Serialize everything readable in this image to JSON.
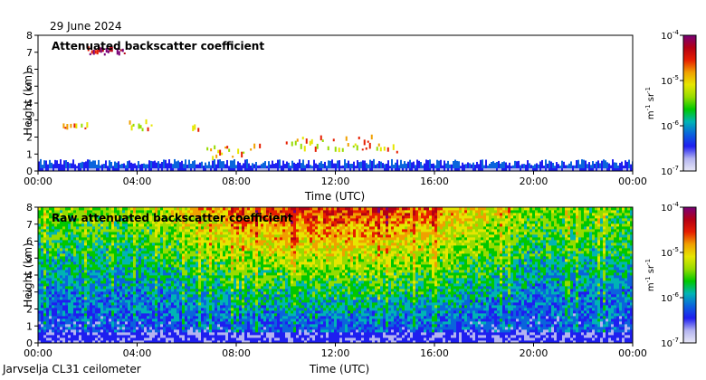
{
  "header": {
    "date": "29 June 2024"
  },
  "footer": {
    "station": "Jarvselja CL31 ceilometer"
  },
  "colors": {
    "colormap": [
      "#e8e8f6",
      "#b4b4f0",
      "#1e1ef0",
      "#0a64dc",
      "#00b4b4",
      "#00c800",
      "#96dc00",
      "#e6e600",
      "#f0a000",
      "#e61e00",
      "#b40014",
      "#780078"
    ]
  },
  "chart_data": [
    {
      "type": "heatmap",
      "title": "Attenuated backscatter coefficient",
      "xlabel": "Time (UTC)",
      "ylabel": "Height (km)",
      "x_ticks": [
        "00:00",
        "04:00",
        "08:00",
        "12:00",
        "16:00",
        "20:00",
        "00:00"
      ],
      "xlim_hours": [
        0,
        24
      ],
      "ylim": [
        0,
        8
      ],
      "y_ticks": [
        "0",
        "1",
        "2",
        "3",
        "4",
        "5",
        "6",
        "7",
        "8"
      ],
      "colorbar": {
        "scale": "log",
        "min_label": "10",
        "min_exp": "-7",
        "ticks": [
          {
            "base": "10",
            "exp": "-7"
          },
          {
            "base": "10",
            "exp": "-6"
          },
          {
            "base": "10",
            "exp": "-5"
          },
          {
            "base": "10",
            "exp": "-4"
          }
        ],
        "unit_a": "m",
        "unit_a_exp": "-1",
        "unit_b": "sr",
        "unit_b_exp": "-1"
      },
      "layers": [
        {
          "name": "boundary layer",
          "from_h": 0,
          "to_h": 24,
          "top_km": 0.5
        },
        {
          "name": "cloud band",
          "from_h": 1.0,
          "to_h": 2.0,
          "bottom_km": 2.4,
          "top_km": 2.7
        },
        {
          "name": "cloud band",
          "from_h": 3.6,
          "to_h": 4.6,
          "bottom_km": 2.3,
          "top_km": 3.1
        },
        {
          "name": "cloud band",
          "from_h": 6.0,
          "to_h": 6.5,
          "bottom_km": 2.2,
          "top_km": 2.6
        },
        {
          "name": "cloud band",
          "from_h": 6.8,
          "to_h": 9.2,
          "bottom_km": 0.6,
          "top_km": 1.9
        },
        {
          "name": "cloud band",
          "from_h": 10.0,
          "to_h": 13.8,
          "bottom_km": 1.1,
          "top_km": 2.4
        },
        {
          "name": "cloud band",
          "from_h": 13.8,
          "to_h": 14.6,
          "bottom_km": 1.0,
          "top_km": 1.8
        },
        {
          "name": "cirrus",
          "from_h": 2.0,
          "to_h": 3.6,
          "bottom_km": 6.8,
          "top_km": 7.3
        }
      ]
    },
    {
      "type": "heatmap",
      "title": "Raw attenuated backscatter coefficient",
      "xlabel": "Time (UTC)",
      "ylabel": "Height (km)",
      "x_ticks": [
        "00:00",
        "04:00",
        "08:00",
        "12:00",
        "16:00",
        "20:00",
        "00:00"
      ],
      "xlim_hours": [
        0,
        24
      ],
      "ylim": [
        0,
        8
      ],
      "y_ticks": [
        "0",
        "1",
        "2",
        "3",
        "4",
        "5",
        "6",
        "7",
        "8"
      ],
      "colorbar": {
        "scale": "log",
        "ticks": [
          {
            "base": "10",
            "exp": "-7"
          },
          {
            "base": "10",
            "exp": "-6"
          },
          {
            "base": "10",
            "exp": "-5"
          },
          {
            "base": "10",
            "exp": "-4"
          }
        ],
        "unit_a": "m",
        "unit_a_exp": "-1",
        "unit_b": "sr",
        "unit_b_exp": "-1"
      },
      "noise_profile": "blue near ground, green/yellow mid, red/orange aloft (noise increasing with height and daytime)"
    }
  ]
}
